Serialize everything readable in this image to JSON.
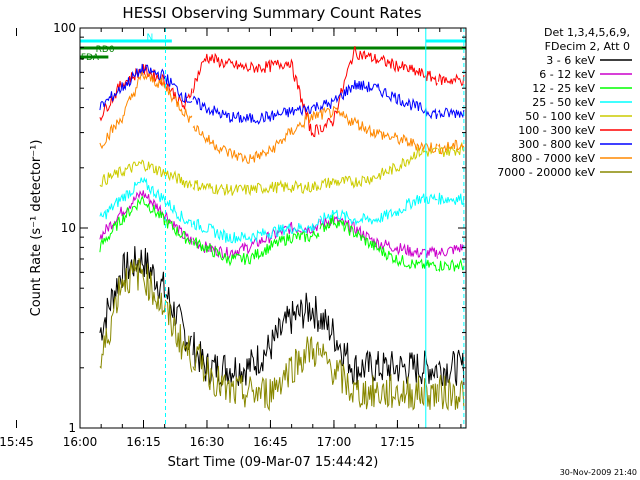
{
  "chart_data": {
    "type": "line",
    "title": "HESSI Observing Summary Count Rates",
    "xlabel": "Start Time (09-Mar-07 15:44:42)",
    "ylabel": "Count Rate (s⁻¹ detector⁻¹)",
    "yscale": "log",
    "ylim": [
      1,
      100
    ],
    "xlim_minutes": [
      15.3,
      106.5
    ],
    "x_unit": "minutes after 15:44:42",
    "x_tick_labels": [
      "15:45",
      "16:00",
      "16:15",
      "16:30",
      "16:45",
      "17:00",
      "17:15"
    ],
    "y_tick_labels": [
      "1",
      "10",
      "100"
    ],
    "grid": false,
    "legend_position": "right",
    "legend_header": [
      "Det 1,3,4,5,6,9,",
      "FDecim 2, Att 0"
    ],
    "timestamp": "30-Nov-2009 21:40",
    "annotations": [
      {
        "text": "N",
        "x_minute": 31,
        "color": "#00ffff"
      },
      {
        "text": "RD0",
        "x_minute": 19,
        "color": "#008000"
      },
      {
        "text": "FDA",
        "x_minute": 15.5,
        "color": "#008000"
      }
    ],
    "flag_bars": [
      {
        "name": "night",
        "color": "#00ffff",
        "intervals": [
          [
            15.3,
            37
          ],
          [
            97,
            106.5
          ]
        ]
      },
      {
        "name": "decimation",
        "color": "#008000",
        "intervals": [
          [
            15.3,
            106.5
          ]
        ]
      },
      {
        "name": "saa",
        "color": "#008000",
        "intervals": [
          [
            15.3,
            22
          ]
        ]
      }
    ],
    "vlines": [
      {
        "x_minute": 35.5,
        "style": "dashed",
        "color": "#00ffff"
      },
      {
        "x_minute": 97,
        "style": "solid",
        "color": "#00ffff"
      },
      {
        "x_minute": 106,
        "style": "dashed",
        "color": "#00ffff"
      }
    ],
    "gaps_minutes": [
      42,
      72,
      100
    ],
    "series": [
      {
        "name": "3 - 6 keV",
        "color": "#000000",
        "x": [
          20,
          25,
          30,
          35,
          40,
          45,
          50,
          55,
          60,
          65,
          70,
          75,
          80,
          85,
          90,
          95,
          100,
          106
        ],
        "y": [
          3,
          6,
          7,
          5,
          3,
          2,
          2,
          2,
          2.5,
          3.5,
          4,
          3,
          2,
          2,
          2,
          2,
          2,
          2
        ]
      },
      {
        "name": "6 - 12 keV",
        "color": "#cc00cc",
        "x": [
          20,
          25,
          30,
          35,
          40,
          45,
          50,
          55,
          60,
          65,
          70,
          75,
          80,
          85,
          90,
          95,
          100,
          106
        ],
        "y": [
          9,
          12,
          15,
          12,
          9,
          8,
          7.5,
          8,
          9,
          10,
          10,
          11,
          10,
          8.5,
          8,
          7.5,
          7.5,
          8
        ]
      },
      {
        "name": "12 - 25 keV",
        "color": "#00ff00",
        "x": [
          20,
          25,
          30,
          35,
          40,
          45,
          50,
          55,
          60,
          65,
          70,
          75,
          80,
          85,
          90,
          95,
          100,
          106
        ],
        "y": [
          8,
          11,
          14,
          11,
          9,
          8,
          7,
          7,
          8,
          9,
          9,
          11,
          9.5,
          8,
          7,
          6.5,
          6.5,
          6.5
        ]
      },
      {
        "name": "25 - 50 keV",
        "color": "#00ffff",
        "x": [
          20,
          25,
          30,
          35,
          40,
          45,
          50,
          55,
          60,
          65,
          70,
          75,
          80,
          85,
          90,
          95,
          100,
          106
        ],
        "y": [
          11,
          14,
          17,
          14,
          11,
          10,
          9,
          9,
          9.5,
          10,
          10,
          12,
          11,
          11,
          12,
          14,
          14,
          14
        ]
      },
      {
        "name": "50 - 100 keV",
        "color": "#cccc00",
        "x": [
          20,
          25,
          30,
          35,
          40,
          45,
          50,
          55,
          60,
          65,
          70,
          75,
          80,
          85,
          90,
          95,
          100,
          106
        ],
        "y": [
          17,
          19,
          21,
          19,
          17,
          16,
          15.5,
          15.5,
          16,
          16,
          16,
          17,
          17,
          18,
          20,
          24,
          24,
          25
        ]
      },
      {
        "name": "100 - 300 keV",
        "color": "#ff0000",
        "x": [
          20,
          25,
          30,
          35,
          40,
          45,
          50,
          55,
          60,
          65,
          70,
          75,
          80,
          85,
          90,
          95,
          100,
          106
        ],
        "y": [
          36,
          52,
          62,
          55,
          40,
          72,
          66,
          63,
          64,
          68,
          30,
          34,
          76,
          70,
          65,
          60,
          55,
          55
        ]
      },
      {
        "name": "300 - 800 keV",
        "color": "#0000ff",
        "x": [
          20,
          25,
          30,
          35,
          40,
          45,
          50,
          55,
          60,
          65,
          70,
          75,
          80,
          85,
          90,
          95,
          100,
          106
        ],
        "y": [
          40,
          50,
          62,
          58,
          45,
          40,
          36,
          35,
          36,
          38,
          40,
          42,
          52,
          50,
          45,
          40,
          37,
          38
        ]
      },
      {
        "name": "800 - 7000 keV",
        "color": "#ff8800",
        "x": [
          20,
          25,
          30,
          35,
          40,
          45,
          50,
          55,
          60,
          65,
          70,
          75,
          80,
          85,
          90,
          95,
          100,
          106
        ],
        "y": [
          26,
          35,
          58,
          52,
          38,
          28,
          24,
          22,
          24,
          30,
          36,
          38,
          34,
          30,
          28,
          26,
          25,
          26
        ]
      },
      {
        "name": "7000 - 20000 keV",
        "color": "#888800",
        "x": [
          20,
          25,
          30,
          35,
          40,
          45,
          50,
          55,
          60,
          65,
          70,
          75,
          80,
          85,
          90,
          95,
          100,
          106
        ],
        "y": [
          2,
          5.5,
          6,
          4,
          2.5,
          2,
          1.5,
          1.5,
          1.5,
          2,
          2.5,
          2,
          1.5,
          1.5,
          1.5,
          1.5,
          1.5,
          1.5
        ]
      }
    ]
  }
}
